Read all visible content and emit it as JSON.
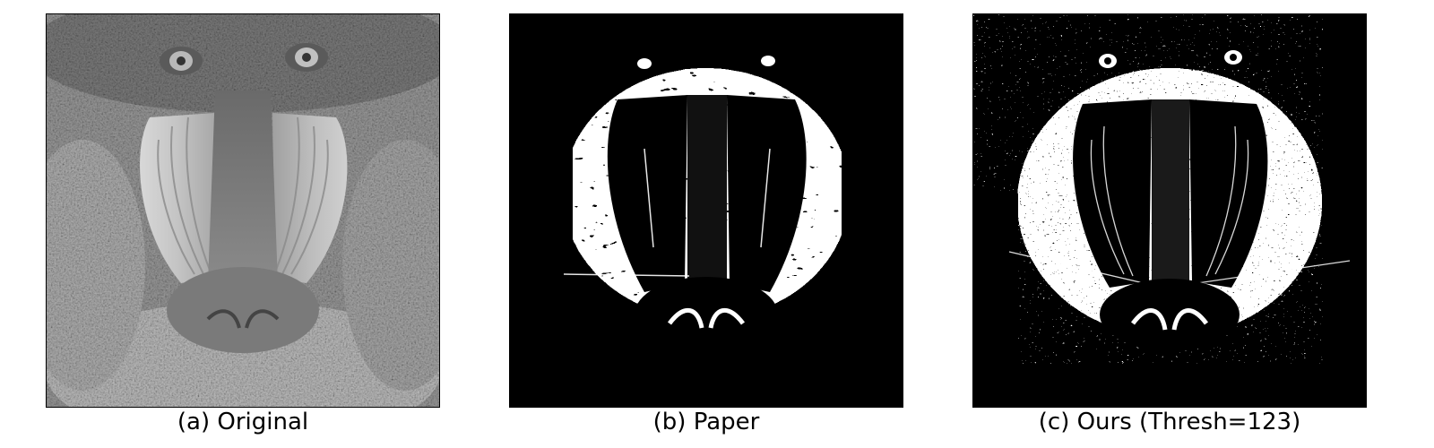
{
  "panels": [
    {
      "caption": "(a) Original"
    },
    {
      "caption": "(b) Paper"
    },
    {
      "caption": "(c) Ours (Thresh=123)"
    }
  ]
}
